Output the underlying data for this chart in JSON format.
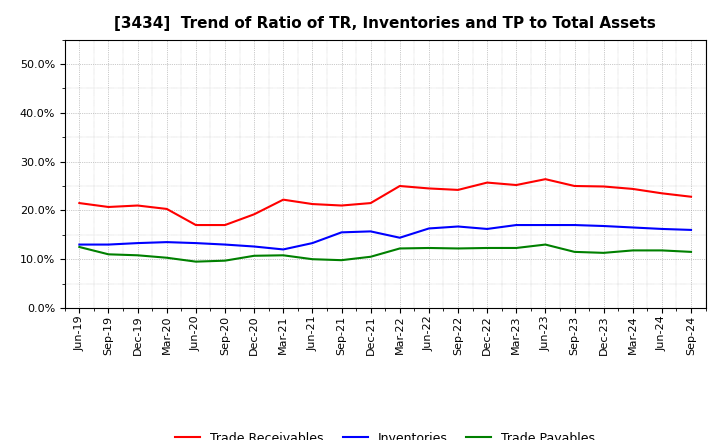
{
  "title": "[3434]  Trend of Ratio of TR, Inventories and TP to Total Assets",
  "x_labels": [
    "Jun-19",
    "Sep-19",
    "Dec-19",
    "Mar-20",
    "Jun-20",
    "Sep-20",
    "Dec-20",
    "Mar-21",
    "Jun-21",
    "Sep-21",
    "Dec-21",
    "Mar-22",
    "Jun-22",
    "Sep-22",
    "Dec-22",
    "Mar-23",
    "Jun-23",
    "Sep-23",
    "Dec-23",
    "Mar-24",
    "Jun-24",
    "Sep-24"
  ],
  "trade_receivables": [
    0.215,
    0.207,
    0.21,
    0.203,
    0.17,
    0.17,
    0.192,
    0.222,
    0.213,
    0.21,
    0.215,
    0.25,
    0.245,
    0.242,
    0.257,
    0.252,
    0.264,
    0.25,
    0.249,
    0.244,
    0.235,
    0.228
  ],
  "inventories": [
    0.13,
    0.13,
    0.133,
    0.135,
    0.133,
    0.13,
    0.126,
    0.12,
    0.133,
    0.155,
    0.157,
    0.144,
    0.163,
    0.167,
    0.162,
    0.17,
    0.17,
    0.17,
    0.168,
    0.165,
    0.162,
    0.16
  ],
  "trade_payables": [
    0.125,
    0.11,
    0.108,
    0.103,
    0.095,
    0.097,
    0.107,
    0.108,
    0.1,
    0.098,
    0.105,
    0.122,
    0.123,
    0.122,
    0.123,
    0.123,
    0.13,
    0.115,
    0.113,
    0.118,
    0.118,
    0.115
  ],
  "color_tr": "#FF0000",
  "color_inv": "#0000FF",
  "color_tp": "#008000",
  "ylim": [
    0.0,
    0.55
  ],
  "yticks": [
    0.0,
    0.1,
    0.2,
    0.3,
    0.4,
    0.5
  ],
  "background_color": "#FFFFFF",
  "grid_color": "#999999",
  "legend_tr": "Trade Receivables",
  "legend_inv": "Inventories",
  "legend_tp": "Trade Payables",
  "title_fontsize": 11,
  "tick_fontsize": 8,
  "line_width": 1.5
}
